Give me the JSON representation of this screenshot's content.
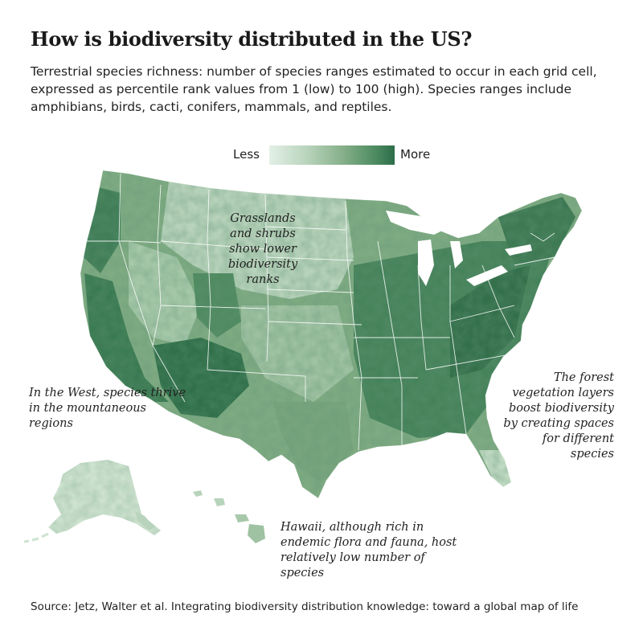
{
  "title": "How is biodiversity distributed in the US?",
  "subtitle": "Terrestrial species richness: number of species ranges estimated to occur in each grid cell, expressed as percentile rank values from 1 (low) to 100 (high). Species ranges include amphibians, birds, cacti, conifers, mammals, and reptiles.",
  "legend": {
    "low_label": "Less",
    "high_label": "More",
    "colors": [
      "#e3f0e7",
      "#b9d4bc",
      "#83ae87",
      "#4c8a60",
      "#2c6e4a"
    ]
  },
  "annotations": {
    "grasslands": "Grasslands and shrubs show lower biodiversity ranks",
    "west": "In the West, species thrive in the mountaneous regions",
    "forest": "The forest vegetation layers boost biodiversity by creating spaces for different species",
    "hawaii": "Hawaii, although rich in endemic flora and fauna, host relatively low number of species"
  },
  "source": "Source: Jetz, Walter et al. Integrating biodiversity distribution knowledge: toward a global map of life",
  "map": {
    "region_names": [
      "Contiguous US",
      "Alaska",
      "Hawaii"
    ],
    "scale": "percentile rank 1–100",
    "state_border_color": "#ffffff"
  }
}
